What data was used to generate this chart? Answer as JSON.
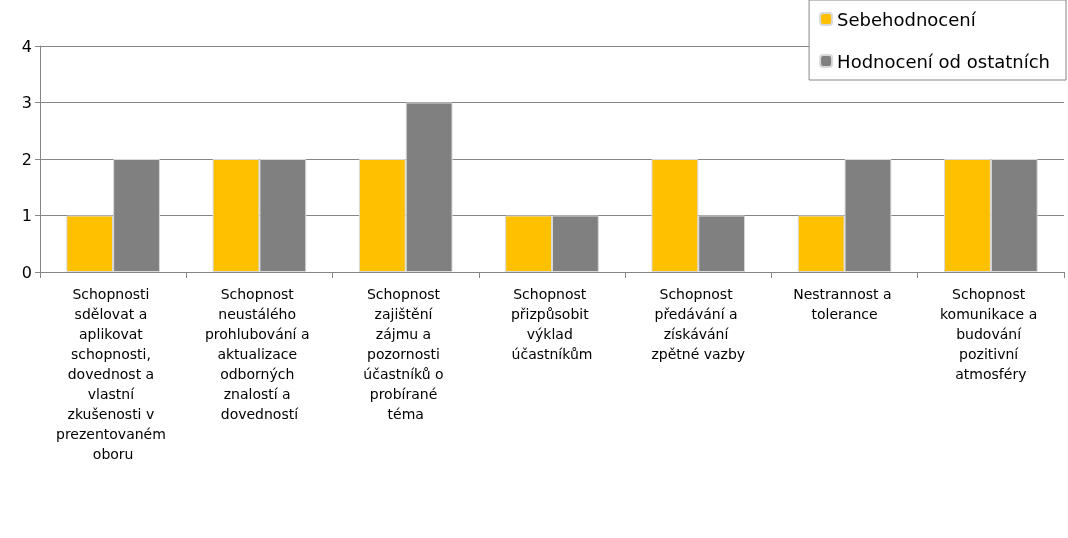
{
  "chart_data": {
    "type": "bar",
    "categories": [
      "Schopnosti sdělovat a aplikovat schopnosti, dovednost a vlastní zkušenosti v prezentovaném oboru",
      "Schopnost neustálého prohlubování a aktualizace odborných znalostí a dovedností",
      "Schopnost zajištění zájmu a pozornosti účastníků o probírané téma",
      "Schopnost přizpůsobit výklad účastníkům",
      "Schopnost předávání a získávání zpětné vazby",
      "Nestrannost a tolerance",
      "Schopnost komunikace a budování pozitivní atmosféry"
    ],
    "series": [
      {
        "name": "Sebehodnocení",
        "color": "#ffc000",
        "values": [
          1,
          2,
          2,
          1,
          2,
          1,
          2
        ]
      },
      {
        "name": "Hodnocení od ostatních",
        "color": "#808080",
        "values": [
          2,
          2,
          3,
          1,
          1,
          2,
          2
        ]
      }
    ],
    "ylim": [
      0,
      4
    ],
    "yticks": [
      0,
      1,
      2,
      3,
      4
    ],
    "grid": "y",
    "legend": "top right"
  }
}
